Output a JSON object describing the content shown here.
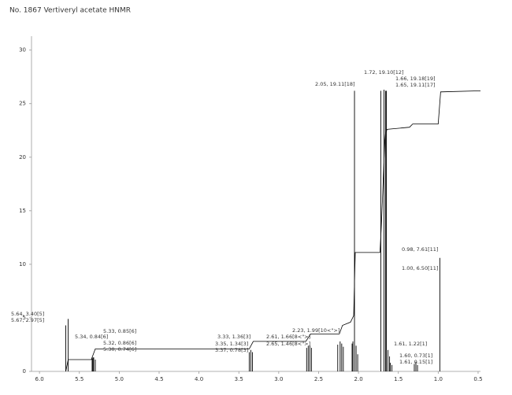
{
  "chart_data": {
    "type": "nmr",
    "title": "No. 1867 Vertiveryl acetate HNMR",
    "xlim": [
      6.1,
      0.47
    ],
    "xticks": [
      {
        "value": 6,
        "label": "6.0"
      },
      5.5,
      {
        "value": 5,
        "label": "5.0"
      },
      4.5,
      {
        "value": 4,
        "label": "4.0"
      },
      3.5,
      {
        "value": 3,
        "label": "3.0"
      },
      2.5,
      {
        "value": 2,
        "label": "2.0"
      },
      1.5,
      {
        "value": 1,
        "label": "1.0"
      },
      0.5
    ],
    "ylim": [
      0,
      31.3
    ],
    "yticks": [
      0,
      5,
      10,
      15,
      20,
      25,
      30
    ],
    "color": "#000000",
    "peaks": {
      "x": [
        5.67,
        5.64,
        5.34,
        5.33,
        5.32,
        5.3,
        3.37,
        3.35,
        3.33,
        2.65,
        2.63,
        2.61,
        2.59,
        2.26,
        2.23,
        2.21,
        2.19,
        2.08,
        2.07,
        2.05,
        2.03,
        2.01,
        1.72,
        1.68,
        1.66,
        1.65,
        1.63,
        1.61,
        1.6,
        1.58,
        1.3,
        1.28,
        1.26,
        0.98
      ],
      "values": [
        4.3,
        4.9,
        1.2,
        1.3,
        1.3,
        1.1,
        1.8,
        2.0,
        1.8,
        2.2,
        2.4,
        2.4,
        2.2,
        2.5,
        2.8,
        2.6,
        2.3,
        2.6,
        2.8,
        26.2,
        2.4,
        1.6,
        26.2,
        26.3,
        26.2,
        26.2,
        2.0,
        1.4,
        0.8,
        0.6,
        0.7,
        0.9,
        0.6,
        10.6
      ]
    },
    "integral": {
      "x": [
        5.67,
        5.64,
        5.35,
        5.3,
        3.37,
        3.32,
        2.66,
        2.6,
        2.24,
        2.2,
        2.1,
        2.06,
        2.04,
        1.73,
        1.71,
        1.67,
        1.66,
        1.64,
        1.36,
        1.32,
        1.0,
        0.97,
        0.47
      ],
      "values": [
        0,
        1.1,
        1.1,
        2.1,
        2.1,
        2.8,
        2.8,
        3.5,
        3.5,
        4.3,
        4.6,
        5.2,
        11.1,
        11.1,
        14.2,
        21.5,
        22.3,
        22.6,
        22.8,
        23.1,
        23.1,
        26.1,
        26.2
      ]
    },
    "annotations": [
      "5.64, 3.40[5]",
      "5.67, 2.97[5]",
      "5.34, 0.84[6]",
      "5.33, 0.85[6]",
      "5.32, 0.86[6]",
      "5.30, 0.74[6]",
      "3.33, 1.36[3]",
      "3.35, 1.34[3]",
      "3.37, 0.78[3]",
      "2.61, 1.66[8<\">]",
      "2.65, 1.46[8<\">]",
      "2.23, 1.99[10<\">]",
      "2.05, 19.11[18]",
      "1.72, 19.10[12]",
      "1.66, 19.18[19]",
      "1.65, 19.11[17]",
      "0.98, 7.61[11]",
      "1.00, 6.50[11]",
      "1.61, 1.22[1]",
      "1.60, 0.73[1]",
      "1.61, 0.15[1]"
    ]
  }
}
